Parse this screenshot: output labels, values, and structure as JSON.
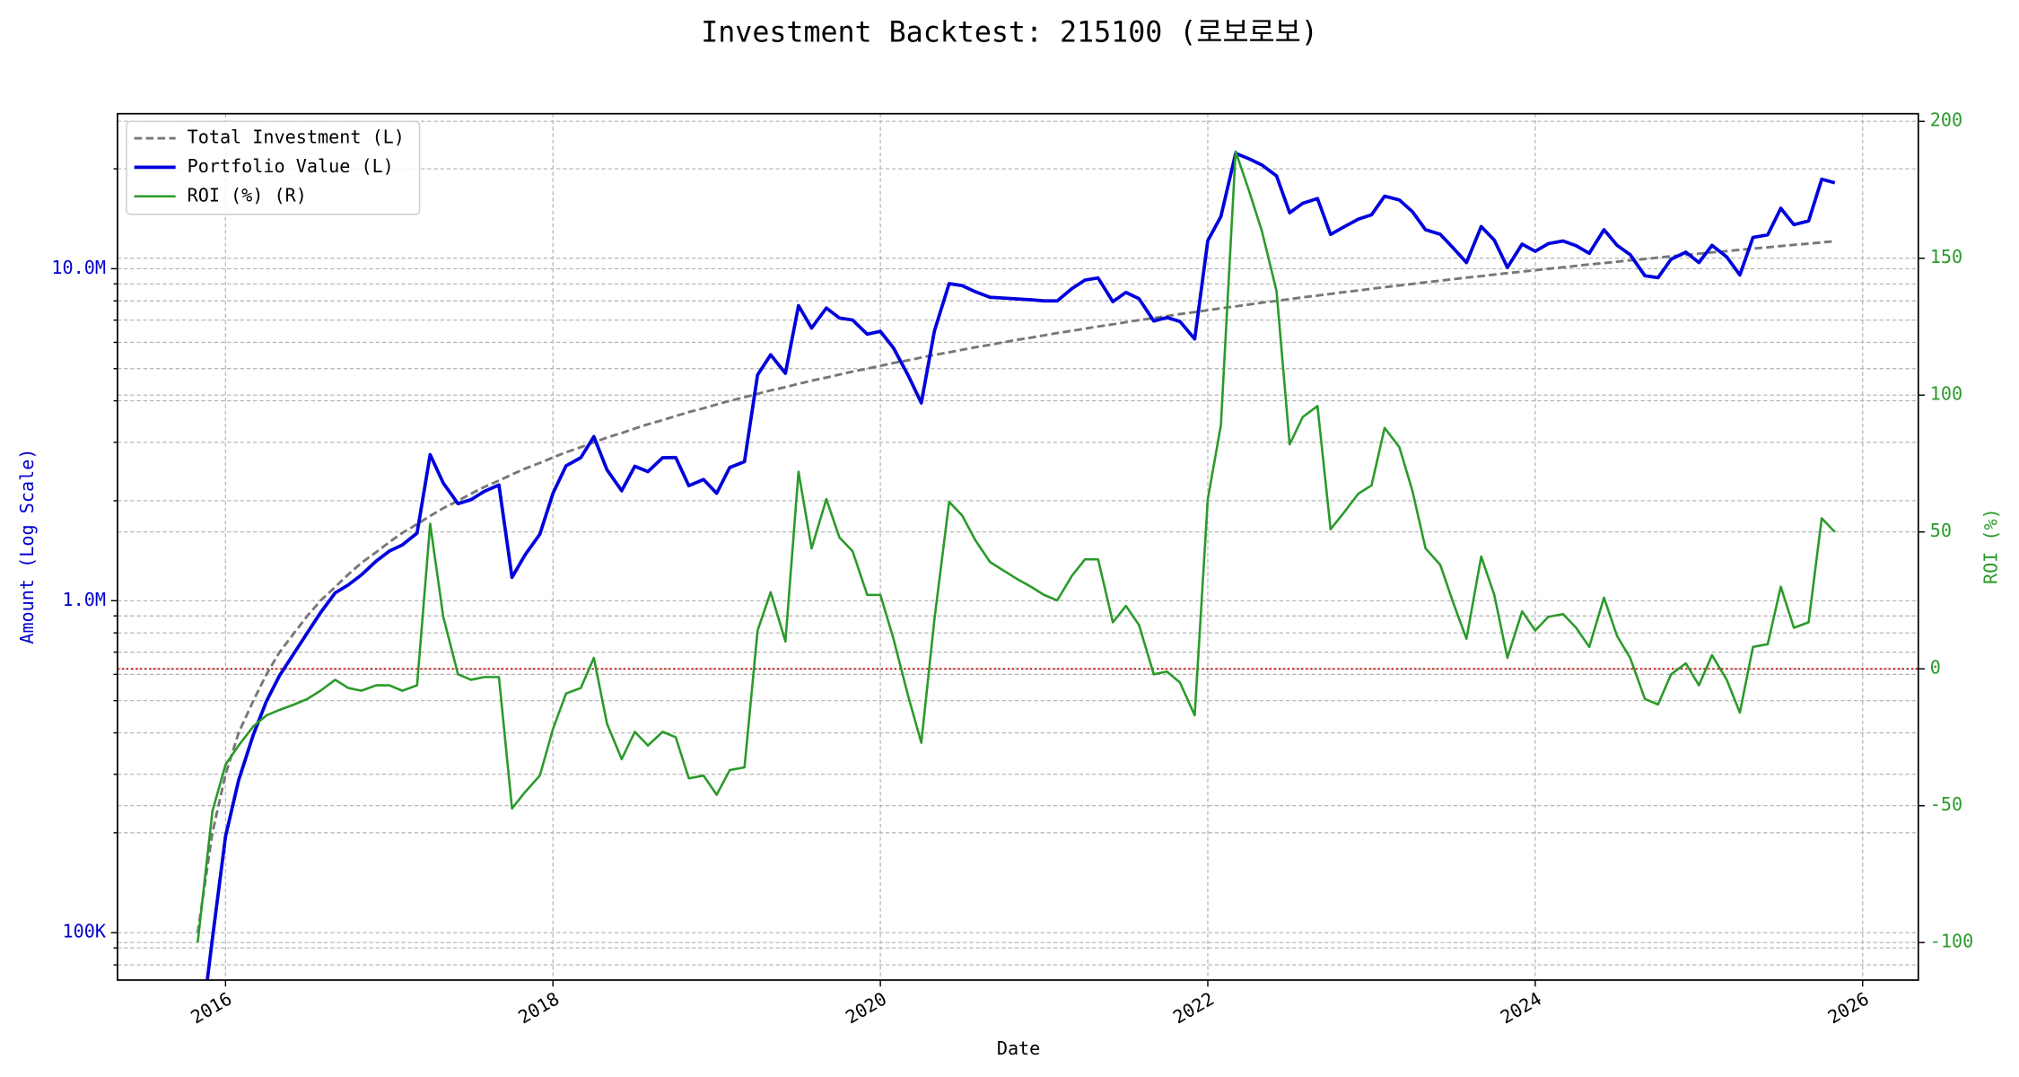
{
  "chart_data": {
    "type": "line",
    "title": "Investment Backtest: 215100 (로보로보)",
    "xlabel": "Date",
    "ylabel": "Amount (Log Scale)",
    "y2label": "ROI (%)",
    "ylabel_color": "#0000cc",
    "y2label_color": "#2a9a2a",
    "yscale": "log",
    "grid": true,
    "legend": "upper left",
    "x": [
      2015.83,
      2015.92,
      2016.0,
      2016.08,
      2016.17,
      2016.25,
      2016.33,
      2016.42,
      2016.5,
      2016.58,
      2016.67,
      2016.75,
      2016.83,
      2016.92,
      2017.0,
      2017.08,
      2017.17,
      2017.25,
      2017.33,
      2017.42,
      2017.5,
      2017.58,
      2017.67,
      2017.75,
      2017.83,
      2017.92,
      2018.0,
      2018.08,
      2018.17,
      2018.25,
      2018.33,
      2018.42,
      2018.5,
      2018.58,
      2018.67,
      2018.75,
      2018.83,
      2018.92,
      2019.0,
      2019.08,
      2019.17,
      2019.25,
      2019.33,
      2019.42,
      2019.5,
      2019.58,
      2019.67,
      2019.75,
      2019.83,
      2019.92,
      2020.0,
      2020.08,
      2020.17,
      2020.25,
      2020.33,
      2020.42,
      2020.5,
      2020.58,
      2020.67,
      2020.75,
      2020.83,
      2020.92,
      2021.0,
      2021.08,
      2021.17,
      2021.25,
      2021.33,
      2021.42,
      2021.5,
      2021.58,
      2021.67,
      2021.75,
      2021.83,
      2021.92,
      2022.0,
      2022.08,
      2022.17,
      2022.25,
      2022.33,
      2022.42,
      2022.5,
      2022.58,
      2022.67,
      2022.75,
      2022.83,
      2022.92,
      2023.0,
      2023.08,
      2023.17,
      2023.25,
      2023.33,
      2023.42,
      2023.5,
      2023.58,
      2023.67,
      2023.75,
      2023.83,
      2023.92,
      2024.0,
      2024.08,
      2024.17,
      2024.25,
      2024.33,
      2024.42,
      2024.5,
      2024.58,
      2024.67,
      2024.75,
      2024.83,
      2024.92,
      2025.0,
      2025.08,
      2025.17,
      2025.25,
      2025.33,
      2025.42,
      2025.5,
      2025.58,
      2025.67,
      2025.75,
      2025.83
    ],
    "xlim": [
      2015.34,
      2026.34
    ],
    "xticks": [
      2016,
      2018,
      2020,
      2022,
      2024,
      2026
    ],
    "ylim": [
      72000,
      29300000
    ],
    "yticks": [
      {
        "value": 100000,
        "label": "100K"
      },
      {
        "value": 1000000,
        "label": "1.0M"
      },
      {
        "value": 10000000,
        "label": "10.0M"
      }
    ],
    "yminorticks": [
      80000,
      90000,
      200000,
      300000,
      400000,
      500000,
      600000,
      700000,
      800000,
      900000,
      2000000,
      3000000,
      4000000,
      5000000,
      6000000,
      7000000,
      8000000,
      9000000,
      20000000
    ],
    "y2lim": [
      -113.7,
      202.8
    ],
    "y2ticks": [
      -100,
      -50,
      0,
      50,
      100,
      150,
      200
    ],
    "y2hline": 0,
    "y2hline_color": "#cc0000",
    "series": [
      {
        "name": "Total Investment (L)",
        "color": "#777777",
        "dashed": true,
        "axis": "y",
        "values": [
          100000,
          200000,
          300000,
          400000,
          500000,
          600000,
          700000,
          800000,
          900000,
          1000000,
          1100000,
          1200000,
          1300000,
          1400000,
          1500000,
          1600000,
          1700000,
          1800000,
          1900000,
          2000000,
          2100000,
          2200000,
          2300000,
          2400000,
          2500000,
          2600000,
          2700000,
          2800000,
          2900000,
          3000000,
          3100000,
          3200000,
          3300000,
          3400000,
          3500000,
          3600000,
          3700000,
          3800000,
          3900000,
          4000000,
          4100000,
          4200000,
          4300000,
          4400000,
          4500000,
          4600000,
          4700000,
          4800000,
          4900000,
          5000000,
          5100000,
          5200000,
          5300000,
          5400000,
          5500000,
          5600000,
          5700000,
          5800000,
          5900000,
          6000000,
          6100000,
          6200000,
          6300000,
          6400000,
          6500000,
          6600000,
          6700000,
          6800000,
          6900000,
          7000000,
          7100000,
          7200000,
          7300000,
          7400000,
          7500000,
          7600000,
          7700000,
          7800000,
          7900000,
          8000000,
          8100000,
          8200000,
          8300000,
          8400000,
          8500000,
          8600000,
          8700000,
          8800000,
          8900000,
          9000000,
          9100000,
          9200000,
          9300000,
          9400000,
          9500000,
          9600000,
          9700000,
          9800000,
          9900000,
          10000000,
          10100000,
          10200000,
          10300000,
          10400000,
          10500000,
          10600000,
          10700000,
          10800000,
          10900000,
          11000000,
          11100000,
          11200000,
          11300000,
          11400000,
          11500000,
          11600000,
          11700000,
          11800000,
          11900000,
          12000000,
          12100000
        ]
      },
      {
        "name": "Portfolio Value (L)",
        "color": "#0000dd",
        "dashed": false,
        "axis": "y",
        "values": [
          0,
          96000,
          195000,
          288000,
          395000,
          498000,
          595000,
          696000,
          801000,
          920000,
          1056000,
          1116000,
          1196000,
          1316000,
          1410000,
          1472000,
          1598000,
          2754000,
          2261000,
          1960000,
          2016000,
          2134000,
          2231000,
          1176000,
          1375000,
          1586000,
          2106000,
          2548000,
          2697000,
          3120000,
          2480000,
          2144000,
          2541000,
          2448000,
          2695000,
          2700000,
          2220000,
          2318000,
          2106000,
          2520000,
          2624000,
          4788000,
          5504000,
          4840000,
          7740000,
          6624000,
          7614000,
          7104000,
          7007000,
          6350000,
          6477000,
          5772000,
          4770000,
          3942000,
          6490000,
          9016000,
          8892000,
          8526000,
          8201000,
          8160000,
          8113000,
          8060000,
          8001000,
          8000000,
          8710000,
          9240000,
          9380000,
          7956000,
          8487000,
          8120000,
          6958000,
          7128000,
          6935000,
          6142000,
          12150000,
          14364000,
          22253000,
          21450000,
          20540000,
          19040000,
          14742000,
          15744000,
          16268000,
          12684000,
          13345000,
          14104000,
          14529000,
          16544000,
          16109000,
          14850000,
          13104000,
          12696000,
          11532000,
          10434000,
          13395000,
          12192000,
          10088000,
          11858000,
          11286000,
          11900000,
          12120000,
          11730000,
          11124000,
          13104000,
          11760000,
          11024000,
          9523000,
          9396000,
          10682000,
          11220000,
          10434000,
          11760000,
          10848000,
          9576000,
          12420000,
          12644000,
          15210000,
          13570000,
          13923000,
          18600000,
          18150000
        ]
      },
      {
        "name": "ROI (%) (R)",
        "color": "#2a9a2a",
        "dashed": false,
        "axis": "y2",
        "values": [
          -100,
          -52,
          -35,
          -28,
          -21,
          -17,
          -15,
          -13,
          -11,
          -8,
          -4,
          -7,
          -8,
          -6,
          -6,
          -8,
          -6,
          53,
          19,
          -2,
          -4,
          -3,
          -3,
          -51,
          -45,
          -39,
          -22,
          -9,
          -7,
          4,
          -20,
          -33,
          -23,
          -28,
          -23,
          -25,
          -40,
          -39,
          -46,
          -37,
          -36,
          14,
          28,
          10,
          72,
          44,
          62,
          48,
          43,
          27,
          27,
          11,
          -10,
          -27,
          18,
          61,
          56,
          47,
          39,
          36,
          33,
          30,
          27,
          25,
          34,
          40,
          40,
          17,
          23,
          16,
          -2,
          -1,
          -5,
          -17,
          62,
          89,
          189,
          175,
          160,
          138,
          82,
          92,
          96,
          51,
          57,
          64,
          67,
          88,
          81,
          65,
          44,
          38,
          24,
          11,
          41,
          27,
          4,
          21,
          14,
          19,
          20,
          15,
          8,
          26,
          12,
          4,
          -11,
          -13,
          -2,
          2,
          -6,
          5,
          -4,
          -16,
          8,
          9,
          30,
          15,
          17,
          55,
          50
        ]
      }
    ]
  }
}
